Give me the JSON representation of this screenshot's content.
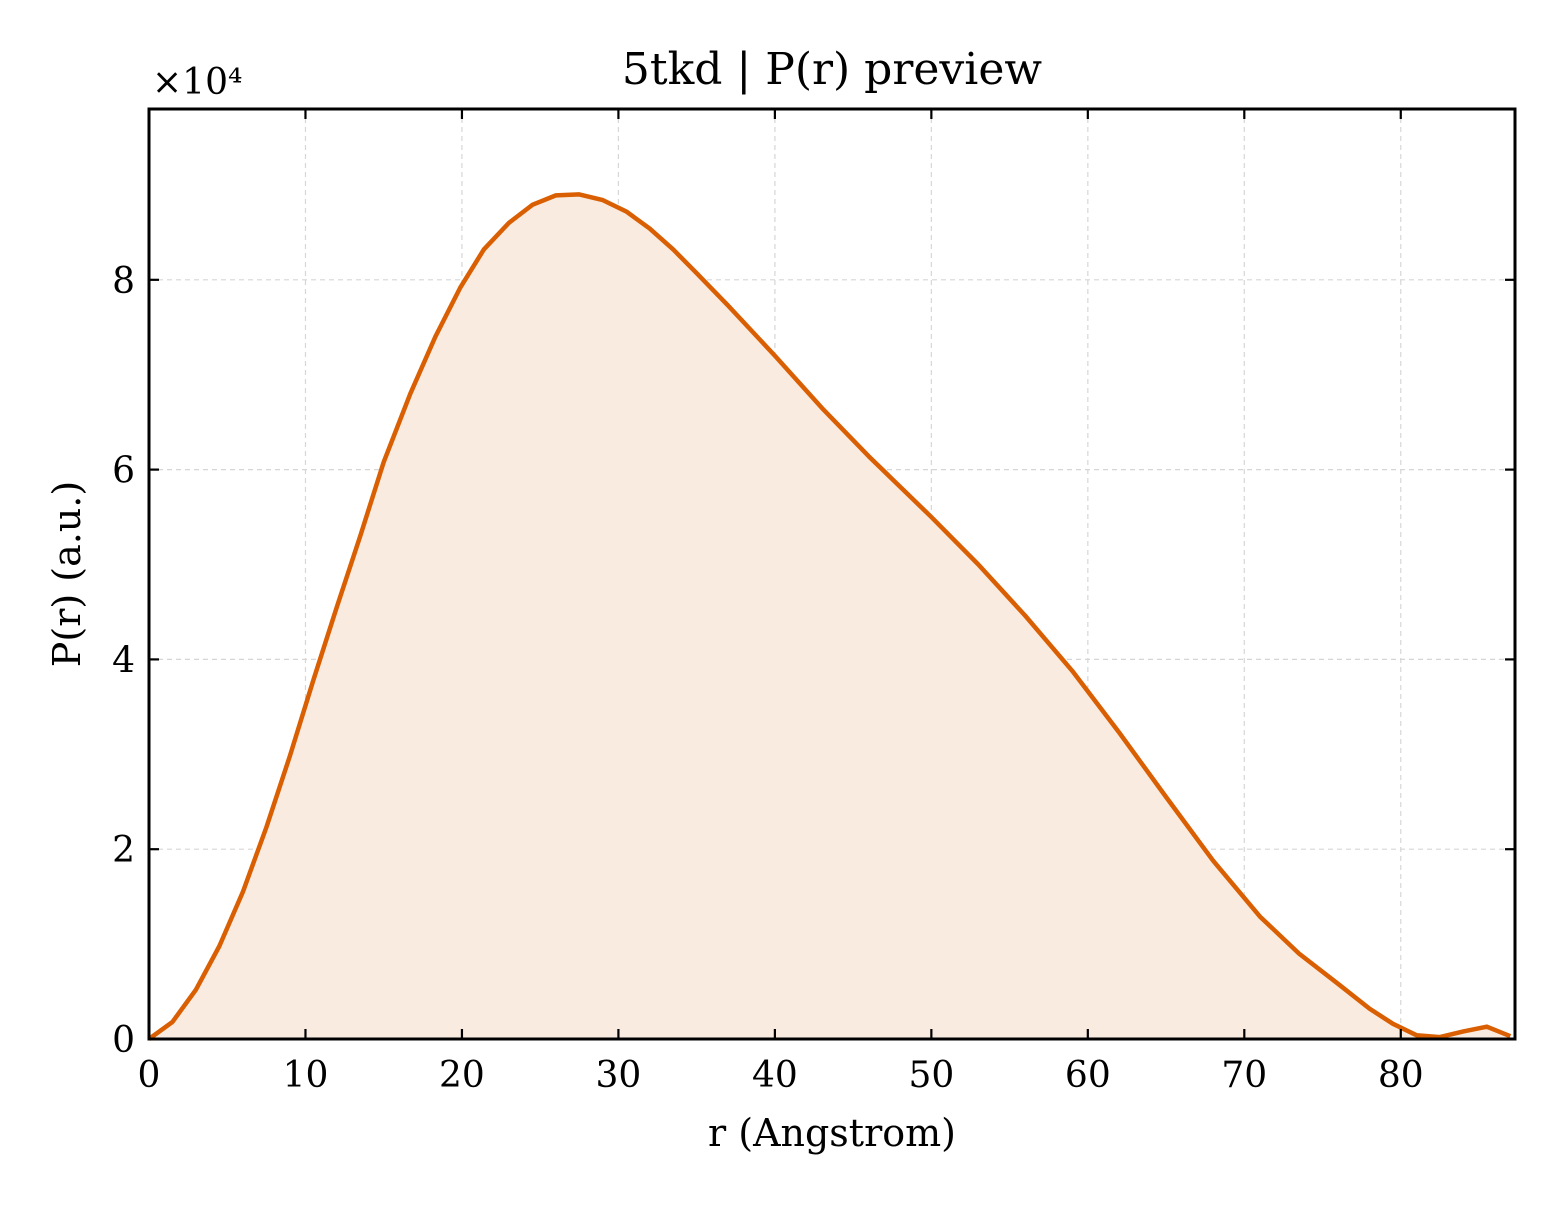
{
  "chart_data": {
    "type": "area",
    "title": "5tkd | P(r) preview",
    "xlabel": "r (Angstrom)",
    "ylabel": "P(r) (a.u.)",
    "y_exponent_label": "×10⁴",
    "y_scale_factor": 10000,
    "xlim": [
      0,
      87.3
    ],
    "ylim": [
      0,
      98000
    ],
    "x_ticks": [
      0,
      10,
      20,
      30,
      40,
      50,
      60,
      70,
      80
    ],
    "y_ticks": [
      0,
      20000,
      40000,
      60000,
      80000
    ],
    "x_tick_labels": [
      "0",
      "10",
      "20",
      "30",
      "40",
      "50",
      "60",
      "70",
      "80"
    ],
    "y_tick_labels": [
      "0",
      "2",
      "4",
      "6",
      "8"
    ],
    "grid": true,
    "line_color": "#d95f02",
    "fill_color": "#f9ebe0",
    "series": [
      {
        "x": [
          0,
          1.5,
          3.0,
          4.5,
          6.0,
          7.5,
          9.0,
          10.5,
          12.0,
          13.5,
          15.0,
          16.7,
          18.3,
          19.9,
          21.4,
          23.0,
          24.5,
          26.0,
          27.5,
          29.0,
          30.5,
          32.0,
          33.5,
          35.0,
          37.0,
          40.0,
          43.0,
          46.0,
          50.0,
          53.0,
          56.0,
          59.0,
          62.0,
          65.0,
          68.0,
          71.0,
          73.5,
          76.0,
          78.0,
          79.5,
          81.0,
          82.5,
          84.0,
          85.5,
          87.0
        ],
        "y": [
          0,
          1800,
          5200,
          9800,
          15500,
          22300,
          29800,
          37800,
          45500,
          53000,
          60800,
          68000,
          74000,
          79200,
          83200,
          86000,
          87900,
          88900,
          89000,
          88400,
          87200,
          85400,
          83200,
          80700,
          77300,
          72000,
          66500,
          61400,
          55000,
          50000,
          44600,
          38800,
          32300,
          25500,
          18800,
          12900,
          9000,
          5800,
          3200,
          1600,
          400,
          200,
          800,
          1300,
          300
        ]
      }
    ]
  }
}
